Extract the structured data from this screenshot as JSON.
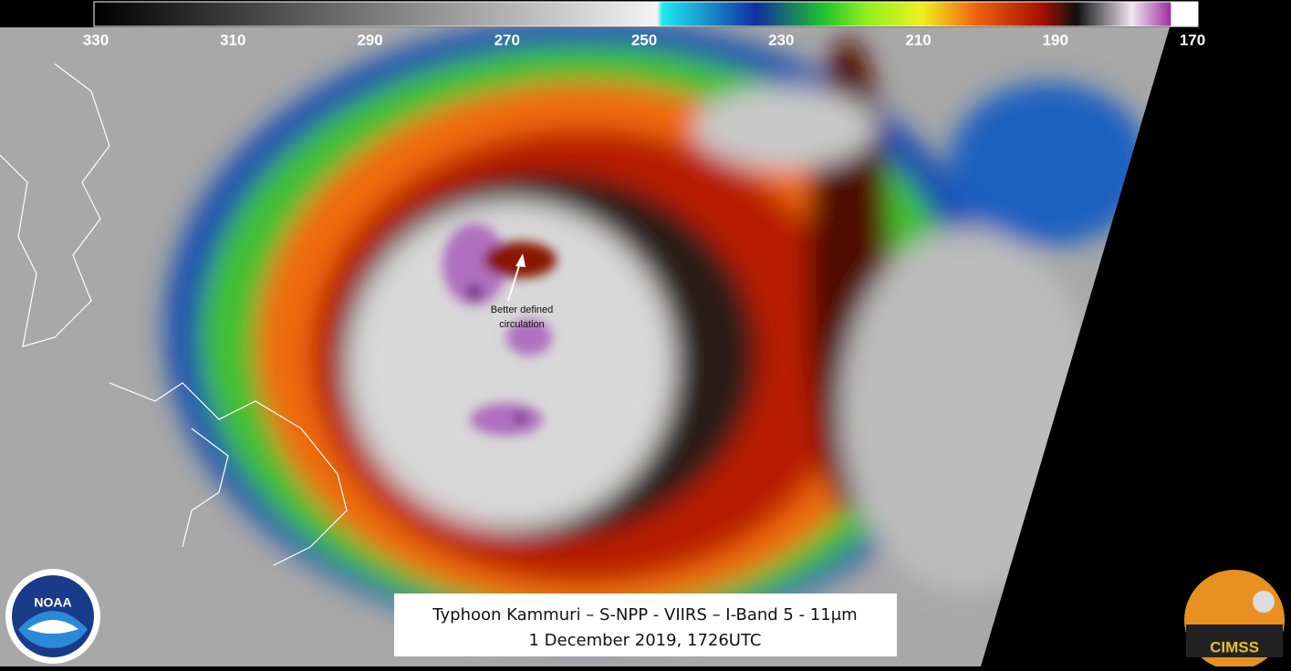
{
  "colorbar": {
    "range": [
      330,
      170
    ],
    "ticks": [
      330,
      310,
      290,
      270,
      250,
      230,
      210,
      190,
      170
    ]
  },
  "annotation": {
    "lines": [
      "Better defined",
      "circulation"
    ]
  },
  "caption": {
    "lines": [
      "Typhoon Kammuri  – S-NPP - VIIRS – I-Band 5 - 11μm",
      "1 December 2019, 1726UTC"
    ]
  },
  "logos": {
    "noaa": "NOAA",
    "cimss": "CIMSS"
  }
}
